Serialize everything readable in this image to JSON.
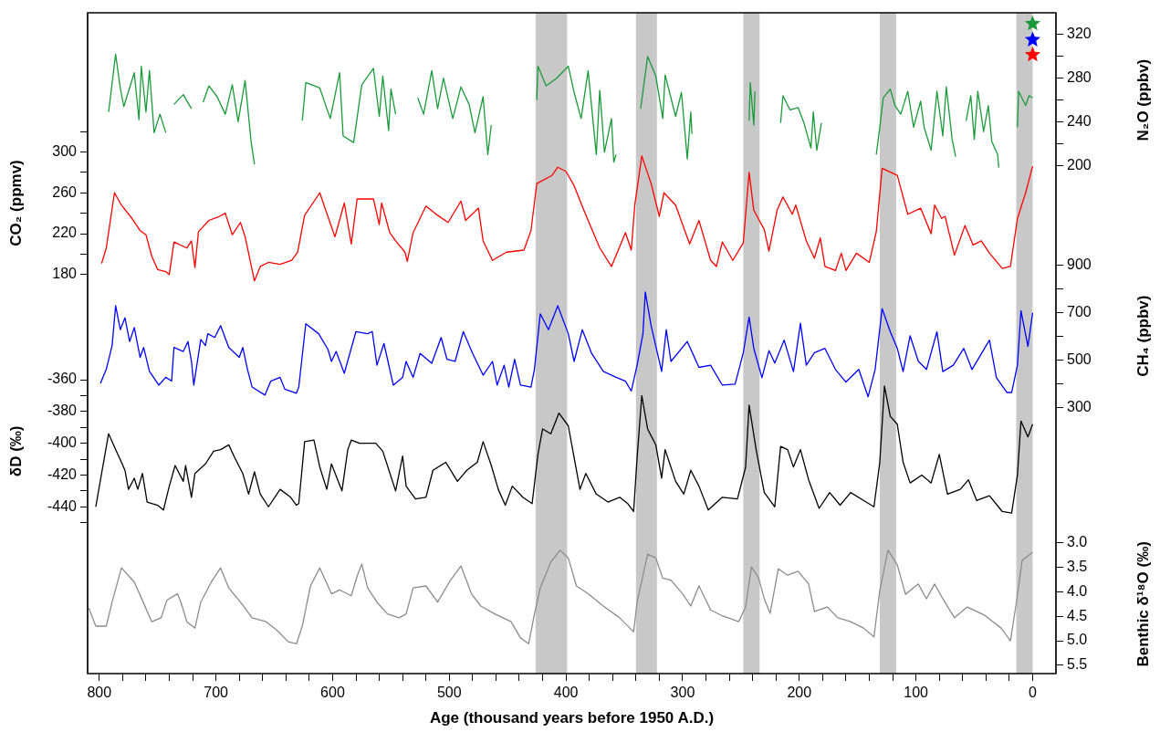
{
  "chart_data": [
    {
      "type": "line",
      "xlabel": "Age (thousand years before 1950 A.D.)",
      "ylabel": "CO₂ (ppmv)",
      "y2label": "N₂O (ppbv)",
      "y3label": "CH₄ (ppbv)",
      "xlim": [
        810,
        -20
      ],
      "xticks": [
        0,
        {
          "value": 20,
          "label": null
        },
        {
          "value": 40,
          "label": null
        },
        {
          "value": 60,
          "label": null
        },
        {
          "value": 80,
          "label": null
        },
        100,
        {
          "value": 120,
          "label": null
        },
        {
          "value": 140,
          "label": null
        },
        {
          "value": 160,
          "label": null
        },
        {
          "value": 180,
          "label": null
        },
        200,
        {
          "value": 220,
          "label": null
        },
        {
          "value": 240,
          "label": null
        },
        {
          "value": 260,
          "label": null
        },
        {
          "value": 280,
          "label": null
        },
        300,
        {
          "value": 320,
          "label": null
        },
        {
          "value": 340,
          "label": null
        },
        {
          "value": 360,
          "label": null
        },
        {
          "value": 380,
          "label": null
        },
        400,
        {
          "value": 420,
          "label": null
        },
        {
          "value": 440,
          "label": null
        },
        {
          "value": 460,
          "label": null
        },
        {
          "value": 480,
          "label": null
        },
        500,
        {
          "value": 520,
          "label": null
        },
        {
          "value": 540,
          "label": null
        },
        {
          "value": 560,
          "label": null
        },
        {
          "value": 580,
          "label": null
        },
        600,
        {
          "value": 620,
          "label": null
        },
        {
          "value": 640,
          "label": null
        },
        {
          "value": 660,
          "label": null
        },
        {
          "value": 680,
          "label": null
        },
        700,
        {
          "value": 720,
          "label": null
        },
        {
          "value": 740,
          "label": null
        },
        {
          "value": 760,
          "label": null
        },
        {
          "value": 780,
          "label": null
        },
        800
      ],
      "ylim": [
        -210,
        436
      ],
      "yticks": [
        180,
        {
          "value": 200,
          "label": null
        },
        220,
        {
          "value": 240,
          "label": null
        },
        260,
        {
          "value": 280,
          "label": null
        },
        300,
        {
          "value": 320,
          "label": null
        }
      ],
      "y2lim": [
        -266,
        340
      ],
      "y2ticks": [
        200,
        {
          "value": 220,
          "label": null
        },
        240,
        {
          "value": 260,
          "label": null
        },
        280,
        {
          "value": 300,
          "label": null
        },
        320
      ],
      "y3lim": [
        -824,
        1964
      ],
      "y3ticks": [
        300,
        {
          "value": 400,
          "label": null
        },
        500,
        {
          "value": 600,
          "label": null
        },
        700,
        {
          "value": 800,
          "label": null
        },
        900
      ],
      "bands": [
        {
          "axis": "x",
          "from": 426,
          "to": 399,
          "color": "#c8c8c8"
        },
        {
          "axis": "x",
          "from": 340,
          "to": 322,
          "color": "#c8c8c8"
        },
        {
          "axis": "x",
          "from": 248,
          "to": 234,
          "color": "#c8c8c8"
        },
        {
          "axis": "x",
          "from": 131,
          "to": 117,
          "color": "#c8c8c8"
        },
        {
          "axis": "x",
          "from": 14,
          "to": 0,
          "color": "#c8c8c8"
        }
      ],
      "series": [
        {
          "axis": "y2",
          "color": "#1a9a3a",
          "x": [
            792,
            786,
            782,
            779,
            770,
            766,
            764,
            760,
            757,
            753,
            748,
            743,
            740,
            736,
            728,
            721,
            716,
            711,
            706,
            699,
            692,
            686,
            681,
            675,
            670,
            667,
            650,
            626,
            623,
            611,
            602,
            594,
            591,
            582,
            575,
            565,
            560,
            557,
            552,
            550,
            546,
            535,
            527,
            522,
            515,
            510,
            505,
            497,
            490,
            483,
            478,
            471,
            467,
            464,
            445,
            425,
            424,
            417,
            408,
            398,
            393,
            387,
            381,
            374,
            371,
            367,
            361,
            359,
            357,
            346,
            336,
            330,
            323,
            317,
            315,
            306,
            301,
            296,
            293,
            292,
            268,
            243,
            242,
            239,
            238,
            227,
            216,
            214,
            208,
            201,
            196,
            190,
            188,
            185,
            181,
            158,
            134,
            131,
            128,
            122,
            118,
            113,
            107,
            102,
            96,
            93,
            87,
            82,
            77,
            74,
            69,
            66,
            61,
            57,
            53,
            50,
            47,
            42,
            38,
            35,
            30,
            29,
            20,
            13,
            12,
            6,
            3,
            0
          ],
          "values": [
            249,
            302,
            271,
            254,
            285,
            242,
            291,
            249,
            287,
            230,
            247,
            230,
            null,
            256,
            265,
            252,
            null,
            258,
            273,
            263,
            247,
            274,
            240,
            278,
            223,
            201,
            null,
            241,
            276,
            271,
            243,
            285,
            227,
            221,
            274,
            289,
            245,
            282,
            232,
            270,
            247,
            null,
            262,
            247,
            287,
            252,
            280,
            243,
            272,
            256,
            230,
            263,
            210,
            237,
            null,
            260,
            291,
            273,
            280,
            291,
            267,
            243,
            287,
            210,
            269,
            212,
            243,
            203,
            210,
            null,
            252,
            300,
            282,
            243,
            283,
            245,
            267,
            206,
            249,
            229,
            null,
            241,
            276,
            237,
            268,
            null,
            239,
            264,
            251,
            253,
            239,
            216,
            249,
            214,
            239,
            null,
            210,
            235,
            262,
            270,
            255,
            247,
            268,
            235,
            259,
            235,
            214,
            268,
            227,
            272,
            224,
            208,
            null,
            241,
            264,
            224,
            268,
            231,
            255,
            222,
            210,
            198,
            null,
            235,
            268,
            255,
            264,
            262
          ]
        },
        {
          "color": "#ff0000",
          "x": [
            798,
            794,
            787,
            781,
            772,
            765,
            760,
            755,
            750,
            743,
            740,
            736,
            725,
            721,
            718,
            715,
            706,
            697,
            692,
            686,
            679,
            675,
            670,
            667,
            662,
            655,
            645,
            635,
            630,
            624,
            611,
            605,
            598,
            590,
            584,
            579,
            565,
            560,
            558,
            551,
            546,
            538,
            536,
            531,
            520,
            510,
            501,
            490,
            486,
            475,
            471,
            463,
            451,
            436,
            430,
            425,
            412,
            407,
            400,
            393,
            385,
            371,
            361,
            349,
            344,
            341,
            335,
            327,
            320,
            316,
            306,
            294,
            286,
            276,
            271,
            266,
            257,
            248,
            243,
            239,
            230,
            226,
            219,
            214,
            206,
            203,
            194,
            187,
            182,
            178,
            169,
            164,
            160,
            151,
            140,
            134,
            129,
            116,
            107,
            96,
            87,
            84,
            78,
            75,
            67,
            58,
            51,
            44,
            37,
            26,
            19,
            13,
            6,
            0
          ],
          "values": [
            191,
            206,
            260,
            248,
            235,
            223,
            219,
            198,
            185,
            183,
            180,
            212,
            206,
            213,
            187,
            222,
            233,
            237,
            240,
            219,
            231,
            217,
            190,
            174,
            188,
            192,
            190,
            194,
            202,
            238,
            260,
            240,
            217,
            250,
            210,
            254,
            254,
            229,
            250,
            221,
            213,
            202,
            193,
            221,
            247,
            238,
            231,
            252,
            233,
            245,
            213,
            194,
            202,
            204,
            223,
            269,
            277,
            285,
            281,
            267,
            244,
            206,
            188,
            221,
            204,
            248,
            296,
            269,
            237,
            260,
            248,
            210,
            233,
            194,
            188,
            212,
            194,
            211,
            280,
            243,
            224,
            203,
            243,
            256,
            239,
            248,
            213,
            196,
            216,
            188,
            184,
            201,
            184,
            201,
            192,
            222,
            284,
            277,
            239,
            245,
            220,
            248,
            235,
            237,
            199,
            228,
            209,
            213,
            201,
            186,
            188,
            235,
            260,
            286
          ]
        },
        {
          "axis": "y3",
          "color": "#0000ff",
          "x": [
            799,
            794,
            789,
            786,
            782,
            778,
            774,
            770,
            765,
            762,
            757,
            749,
            743,
            738,
            736,
            728,
            724,
            721,
            719,
            713,
            709,
            707,
            701,
            696,
            689,
            680,
            677,
            673,
            669,
            658,
            653,
            645,
            641,
            631,
            629,
            623,
            612,
            604,
            601,
            597,
            590,
            580,
            570,
            566,
            562,
            556,
            548,
            540,
            537,
            531,
            525,
            515,
            507,
            502,
            495,
            488,
            480,
            471,
            463,
            459,
            453,
            449,
            444,
            439,
            430,
            427,
            422,
            415,
            407,
            398,
            393,
            386,
            378,
            368,
            357,
            349,
            344,
            339,
            334,
            332,
            327,
            318,
            314,
            310,
            296,
            286,
            276,
            266,
            255,
            248,
            243,
            239,
            232,
            226,
            221,
            213,
            205,
            199,
            194,
            187,
            178,
            169,
            160,
            149,
            141,
            135,
            129,
            122,
            116,
            111,
            105,
            98,
            91,
            82,
            77,
            68,
            59,
            52,
            37,
            31,
            22,
            18,
            13,
            10,
            4,
            0
          ],
          "values": [
            401,
            460,
            560,
            728,
            627,
            677,
            577,
            636,
            510,
            552,
            451,
            393,
            426,
            410,
            552,
            535,
            577,
            493,
            393,
            586,
            560,
            610,
            594,
            644,
            552,
            510,
            552,
            460,
            385,
            351,
            410,
            426,
            376,
            359,
            385,
            652,
            610,
            544,
            493,
            535,
            443,
            619,
            610,
            619,
            477,
            569,
            393,
            426,
            493,
            426,
            527,
            485,
            594,
            502,
            493,
            619,
            527,
            435,
            493,
            393,
            477,
            385,
            502,
            393,
            385,
            460,
            694,
            627,
            728,
            610,
            493,
            627,
            527,
            451,
            426,
            410,
            368,
            477,
            610,
            786,
            644,
            451,
            627,
            493,
            577,
            468,
            477,
            393,
            397,
            530,
            680,
            548,
            424,
            539,
            486,
            583,
            450,
            654,
            477,
            530,
            548,
            459,
            406,
            459,
            344,
            459,
            716,
            618,
            548,
            450,
            601,
            494,
            459,
            618,
            450,
            477,
            548,
            459,
            583,
            424,
            362,
            362,
            477,
            707,
            556,
            698
          ]
        },
        {
          "type": "scatter",
          "axis": "y2",
          "color": "#1a9a3a",
          "marker": "star",
          "x": [
            0
          ],
          "values": [
            330
          ]
        },
        {
          "type": "scatter",
          "axis": "y3",
          "color": "#0000ff",
          "marker": "star",
          "x": [
            0
          ],
          "values": [
            1850
          ]
        },
        {
          "type": "scatter",
          "color": "#ff0000",
          "marker": "star",
          "x": [
            0
          ],
          "values": [
            395
          ]
        }
      ]
    },
    {
      "type": "line",
      "tick_labels": "y",
      "ylabel": "δD (‰)",
      "y2label": "Benthic δ¹⁸O (‰)",
      "xlim": [
        810,
        -20
      ],
      "ylim": [
        -545,
        -129
      ],
      "yticks": [
        {
          "value": -450,
          "label": null
        },
        -440,
        {
          "value": -430,
          "label": null
        },
        -420,
        {
          "value": -410,
          "label": null
        },
        -400,
        {
          "value": -390,
          "label": null
        },
        -380,
        {
          "value": -370,
          "label": null
        },
        -360
      ],
      "y2lim": [
        5.67,
        -7.83
      ],
      "y2ticks": [
        {
          "value": 3,
          "label": "3.0"
        },
        3.5,
        {
          "value": 4,
          "label": "4.0"
        },
        4.5,
        {
          "value": 5,
          "label": "5.0"
        },
        5.5
      ],
      "series": [
        {
          "color": "#000000",
          "x": [
            803,
            798,
            792,
            786,
            781,
            778,
            775,
            770,
            767,
            763,
            759,
            750,
            745,
            740,
            735,
            728,
            726,
            721,
            718,
            709,
            702,
            696,
            689,
            684,
            677,
            672,
            667,
            662,
            655,
            645,
            636,
            631,
            629,
            624,
            616,
            611,
            605,
            601,
            592,
            587,
            584,
            577,
            563,
            557,
            546,
            540,
            537,
            529,
            520,
            514,
            503,
            493,
            485,
            476,
            471,
            464,
            458,
            452,
            446,
            437,
            429,
            424,
            420,
            413,
            406,
            398,
            393,
            388,
            383,
            374,
            364,
            354,
            347,
            342,
            339,
            335,
            330,
            323,
            318,
            315,
            306,
            299,
            293,
            286,
            278,
            266,
            253,
            246,
            243,
            237,
            230,
            221,
            216,
            210,
            205,
            199,
            192,
            183,
            174,
            165,
            156,
            145,
            136,
            131,
            127,
            122,
            116,
            111,
            105,
            95,
            87,
            80,
            73,
            62,
            55,
            48,
            37,
            26,
            18,
            13,
            10,
            4,
            0
          ],
          "values": [
            -440,
            -419,
            -394,
            -404,
            -412,
            -417,
            -429,
            -422,
            -429,
            -419,
            -437,
            -439,
            -442,
            -427,
            -414,
            -424,
            -414,
            -434,
            -419,
            -413,
            -405,
            -404,
            -401,
            -409,
            -419,
            -432,
            -418,
            -432,
            -440,
            -429,
            -434,
            -439,
            -438,
            -399,
            -398,
            -415,
            -429,
            -413,
            -430,
            -404,
            -398,
            -400,
            -400,
            -405,
            -430,
            -408,
            -427,
            -435,
            -434,
            -417,
            -412,
            -424,
            -417,
            -412,
            -399,
            -414,
            -429,
            -439,
            -427,
            -434,
            -438,
            -407,
            -391,
            -394,
            -381,
            -389,
            -409,
            -429,
            -419,
            -432,
            -437,
            -434,
            -438,
            -443,
            -409,
            -370,
            -391,
            -401,
            -422,
            -404,
            -424,
            -432,
            -417,
            -427,
            -442,
            -434,
            -435,
            -415,
            -376,
            -404,
            -431,
            -440,
            -402,
            -404,
            -415,
            -404,
            -423,
            -441,
            -431,
            -439,
            -431,
            -436,
            -440,
            -412,
            -364,
            -383,
            -388,
            -412,
            -425,
            -420,
            -425,
            -407,
            -432,
            -429,
            -423,
            -436,
            -433,
            -443,
            -444,
            -420,
            -386,
            -396,
            -388
          ]
        },
        {
          "axis": "y2",
          "color": "#8c8c8c",
          "x": [
            809,
            803,
            794,
            789,
            781,
            770,
            764,
            755,
            747,
            742,
            733,
            730,
            725,
            718,
            713,
            704,
            696,
            689,
            679,
            669,
            657,
            648,
            638,
            631,
            626,
            619,
            611,
            601,
            594,
            584,
            579,
            575,
            570,
            562,
            553,
            543,
            537,
            531,
            520,
            510,
            500,
            490,
            481,
            473,
            461,
            447,
            439,
            432,
            427,
            422,
            413,
            405,
            398,
            391,
            381,
            368,
            354,
            342,
            339,
            330,
            323,
            317,
            310,
            300,
            293,
            286,
            276,
            266,
            261,
            252,
            246,
            241,
            235,
            230,
            225,
            218,
            210,
            201,
            192,
            187,
            176,
            167,
            156,
            145,
            136,
            131,
            124,
            116,
            109,
            98,
            91,
            84,
            77,
            67,
            56,
            41,
            27,
            19,
            14,
            9,
            0
          ],
          "values": [
            4.33,
            4.7,
            4.7,
            4.21,
            3.51,
            3.8,
            4.12,
            4.61,
            4.53,
            4.17,
            4.04,
            4.21,
            4.61,
            4.74,
            4.21,
            3.8,
            3.51,
            3.92,
            4.21,
            4.53,
            4.61,
            4.78,
            5.02,
            5.06,
            4.7,
            3.88,
            3.51,
            4.04,
            3.96,
            4.08,
            3.68,
            3.43,
            3.92,
            4.21,
            4.45,
            4.53,
            4.45,
            3.92,
            3.88,
            4.21,
            3.8,
            3.47,
            4.04,
            4.29,
            4.45,
            4.61,
            4.94,
            5.06,
            4.45,
            3.92,
            3.39,
            3.15,
            3.31,
            3.88,
            4.04,
            4.29,
            4.53,
            4.82,
            4.21,
            3.23,
            3.31,
            3.72,
            3.76,
            4.04,
            4.29,
            3.88,
            4.37,
            4.49,
            4.53,
            4.61,
            4.31,
            3.49,
            3.71,
            4.14,
            4.44,
            3.53,
            3.66,
            3.58,
            3.84,
            4.4,
            4.31,
            4.53,
            4.61,
            4.74,
            4.92,
            3.97,
            3.15,
            3.45,
            4.05,
            3.84,
            4.14,
            3.84,
            4.14,
            4.53,
            4.31,
            4.48,
            4.74,
            5.0,
            4.23,
            3.36,
            3.19
          ]
        }
      ]
    }
  ]
}
